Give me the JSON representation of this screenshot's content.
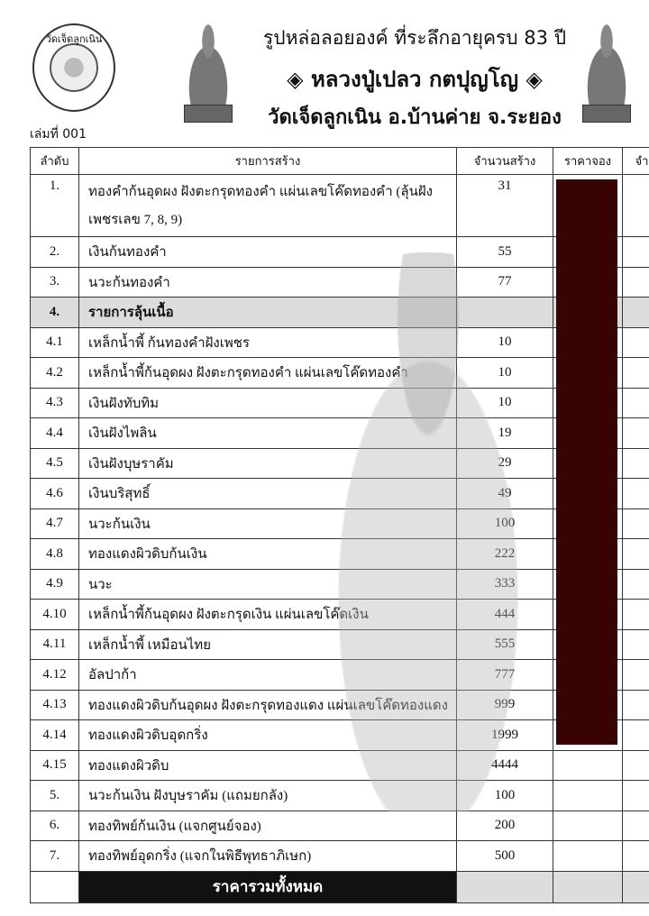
{
  "header": {
    "logo_text": "วัดเจ็ดลูกเนิน",
    "line1": "รูปหล่อลอยองค์ ที่ระลึกอายุครบ 83 ปี",
    "line2": "◈ หลวงปู่เปลว กตปุญโญ ◈",
    "line3": "วัดเจ็ดลูกเนิน อ.บ้านค่าย จ.ระยอง",
    "book_no": "เล่มที่ 001"
  },
  "table": {
    "columns": [
      "ลำดับ",
      "รายการสร้าง",
      "จำนวนสร้าง",
      "ราคาจอง",
      "จำ"
    ],
    "rows": [
      {
        "no": "1.",
        "item": "ทองคำก้นอุดผง ฝังตะกรุดทองคำ แผ่นเลขโค๊ดทองคำ (ลุ้นฝังเพชรเลข 7, 8, 9)",
        "qty": "31"
      },
      {
        "no": "2.",
        "item": "เงินก้นทองคำ",
        "qty": "55"
      },
      {
        "no": "3.",
        "item": "นวะก้นทองคำ",
        "qty": "77"
      },
      {
        "no": "4.",
        "item": "รายการลุ้นเนื้อ",
        "qty": ""
      },
      {
        "no": "4.1",
        "item": "เหล็กน้ำพี้ ก้นทองคำฝังเพชร",
        "qty": "10"
      },
      {
        "no": "4.2",
        "item": "เหล็กน้ำพี้ก้นอุดผง ฝังตะกรุดทองคำ แผ่นเลขโค๊ดทองคำ",
        "qty": "10"
      },
      {
        "no": "4.3",
        "item": "เงินฝังทับทิม",
        "qty": "10"
      },
      {
        "no": "4.4",
        "item": "เงินฝังไพลิน",
        "qty": "19"
      },
      {
        "no": "4.5",
        "item": "เงินฝังบุษราคัม",
        "qty": "29"
      },
      {
        "no": "4.6",
        "item": "เงินบริสุทธิ์",
        "qty": "49"
      },
      {
        "no": "4.7",
        "item": "นวะก้นเงิน",
        "qty": "100"
      },
      {
        "no": "4.8",
        "item": "ทองแดงผิวดิบก้นเงิน",
        "qty": "222"
      },
      {
        "no": "4.9",
        "item": "นวะ",
        "qty": "333"
      },
      {
        "no": "4.10",
        "item": "เหล็กน้ำพี้ก้นอุดผง ฝังตะกรุดเงิน แผ่นเลขโค๊ดเงิน",
        "qty": "444"
      },
      {
        "no": "4.11",
        "item": "เหล็กน้ำพี้ เหมือนไทย",
        "qty": "555"
      },
      {
        "no": "4.12",
        "item": "อัลปาก้า",
        "qty": "777"
      },
      {
        "no": "4.13",
        "item": "ทองแดงผิวดิบก้นอุดผง ฝังตะกรุดทองแดง แผ่นเลขโค๊ดทองแดง",
        "qty": "999"
      },
      {
        "no": "4.14",
        "item": "ทองแดงผิวดิบอุดกริ่ง",
        "qty": "1999"
      },
      {
        "no": "4.15",
        "item": "ทองแดงผิวดิบ",
        "qty": "4444"
      },
      {
        "no": "5.",
        "item": "นวะก้นเงิน ฝังบุษราคัม (แถมยกลัง)",
        "qty": "100"
      },
      {
        "no": "6.",
        "item": "ทองทิพย์ก้นเงิน (แจกศูนย์จอง)",
        "qty": "200"
      },
      {
        "no": "7.",
        "item": "ทองทิพย์อุดกริ่ง (แจกในพิธีพุทธาภิเษก)",
        "qty": "500"
      }
    ],
    "total_label": "ราคารวมทั้งหมด"
  },
  "colors": {
    "redacted_block": "#3a0303",
    "group_row": "#dcdcdc",
    "total_bar": "#111111"
  }
}
